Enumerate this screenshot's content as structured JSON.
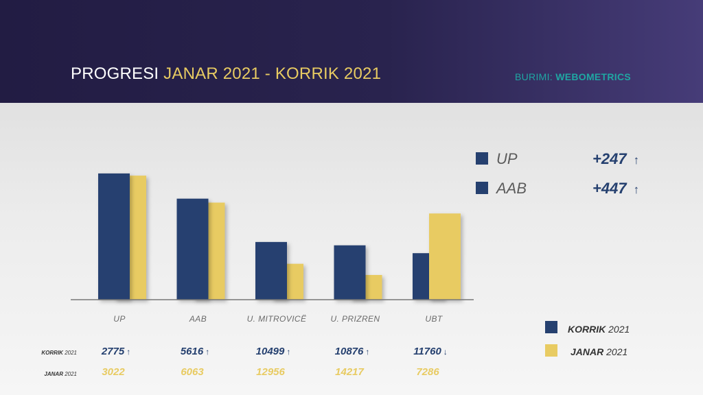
{
  "header": {
    "title_prefix": "PROGRESI ",
    "title_highlight": "JANAR 2021 - KORRIK 2021",
    "source_prefix": "BURIMI: ",
    "source_name": "WEBOMETRICS"
  },
  "colors": {
    "korrik": "#25406f",
    "janar": "#e8cb62",
    "accent_teal": "#1fa7a3"
  },
  "chart_data": {
    "type": "bar",
    "categories": [
      "UP",
      "AAB",
      "U. MITROVICË",
      "U. PRIZREN",
      "UBT"
    ],
    "series": [
      {
        "name": "KORRIK 2021",
        "values": [
          2775,
          5616,
          10499,
          10876,
          11760
        ]
      },
      {
        "name": "JANAR 2021",
        "values": [
          3022,
          6063,
          12956,
          14217,
          7286
        ]
      }
    ],
    "note": "Values are world ranks; bar heights shown inversely (lower rank = taller bar)"
  },
  "table": {
    "korrik_label_bold": "KORRIK",
    "korrik_label_year": " 2021",
    "janar_label_bold": "JANAR",
    "janar_label_year": " 2021",
    "korrik_values": [
      "2775",
      "5616",
      "10499",
      "10876",
      "11760"
    ],
    "korrik_arrows": [
      "↑",
      "↑",
      "↑",
      "↑",
      "↓"
    ],
    "janar_values": [
      "3022",
      "6063",
      "12956",
      "14217",
      "7286"
    ]
  },
  "right_legend": [
    {
      "label": "UP",
      "value": "+247",
      "arrow": "↑"
    },
    {
      "label": "AAB",
      "value": "+447",
      "arrow": "↑"
    }
  ],
  "bottom_legend": {
    "korrik_bold": "KORRIK",
    "korrik_year": " 2021",
    "janar_bold": "JANAR",
    "janar_year": " 2021"
  }
}
